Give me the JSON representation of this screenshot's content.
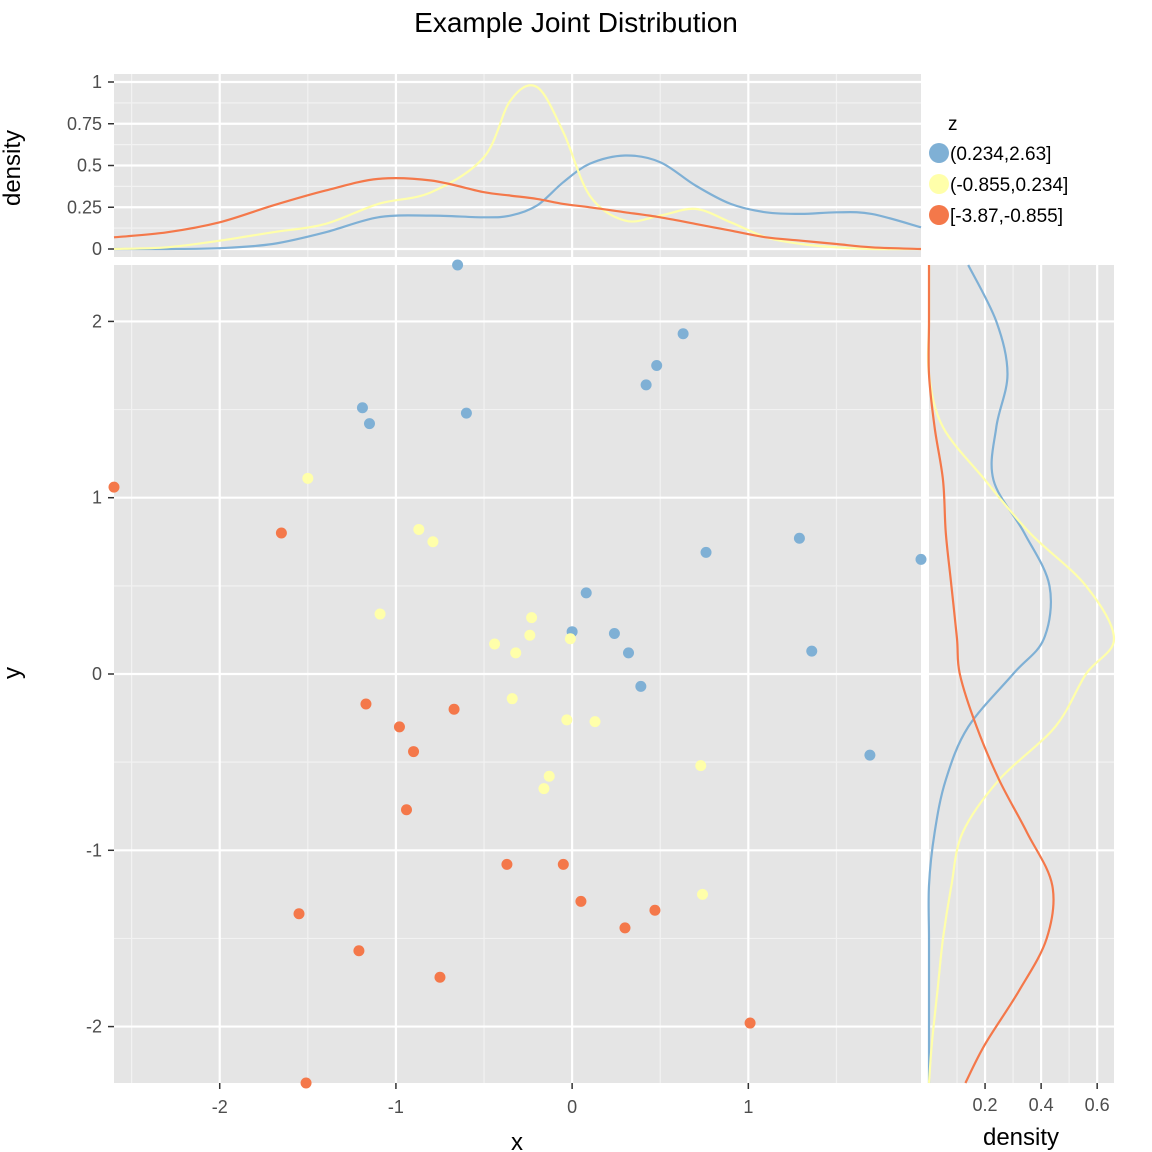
{
  "title": "Example Joint Distribution",
  "colors": {
    "panel_bg": "#e5e5e5",
    "grid_major": "#ffffff",
    "grid_minor": "#f2f2f2",
    "series": [
      "#7fb0d5",
      "#ffffaa",
      "#f4784a"
    ]
  },
  "chart_data": [
    {
      "type": "scatter",
      "role": "main",
      "xlabel": "x",
      "ylabel": "y",
      "xlim": [
        -2.6,
        1.98
      ],
      "ylim": [
        -2.32,
        2.32
      ],
      "xticks": [
        -2,
        -1,
        0,
        1
      ],
      "yticks": [
        -2,
        -1,
        0,
        1,
        2
      ],
      "xtick_labels": [
        "-2",
        "-1",
        "0",
        "1"
      ],
      "ytick_labels": [
        "-2",
        "-1",
        "0",
        "1",
        "2"
      ],
      "grid": true,
      "series": [
        {
          "name": "(0.234,2.63]",
          "points": [
            [
              -0.65,
              2.32
            ],
            [
              -0.6,
              1.48
            ],
            [
              -1.19,
              1.51
            ],
            [
              -1.15,
              1.42
            ],
            [
              0.63,
              1.93
            ],
            [
              0.48,
              1.75
            ],
            [
              0.42,
              1.64
            ],
            [
              0.76,
              0.69
            ],
            [
              1.29,
              0.77
            ],
            [
              1.98,
              0.65
            ],
            [
              0.08,
              0.46
            ],
            [
              0.0,
              0.24
            ],
            [
              0.24,
              0.23
            ],
            [
              0.32,
              0.12
            ],
            [
              1.36,
              0.13
            ],
            [
              0.39,
              -0.07
            ],
            [
              1.69,
              -0.46
            ]
          ]
        },
        {
          "name": "(-0.855,0.234]",
          "points": [
            [
              -1.5,
              1.11
            ],
            [
              -0.87,
              0.82
            ],
            [
              -0.79,
              0.75
            ],
            [
              -1.09,
              0.34
            ],
            [
              -0.23,
              0.32
            ],
            [
              -0.24,
              0.22
            ],
            [
              -0.44,
              0.17
            ],
            [
              -0.32,
              0.12
            ],
            [
              -0.01,
              0.2
            ],
            [
              -0.34,
              -0.14
            ],
            [
              -0.03,
              -0.26
            ],
            [
              0.13,
              -0.27
            ],
            [
              0.73,
              -0.52
            ],
            [
              -0.13,
              -0.58
            ],
            [
              -0.16,
              -0.65
            ],
            [
              0.74,
              -1.25
            ]
          ]
        },
        {
          "name": "[-3.87,-0.855]",
          "points": [
            [
              -2.6,
              1.06
            ],
            [
              -1.65,
              0.8
            ],
            [
              -1.17,
              -0.17
            ],
            [
              -0.98,
              -0.3
            ],
            [
              -0.67,
              -0.2
            ],
            [
              -0.9,
              -0.44
            ],
            [
              -0.94,
              -0.77
            ],
            [
              -0.37,
              -1.08
            ],
            [
              -0.05,
              -1.08
            ],
            [
              0.05,
              -1.29
            ],
            [
              0.47,
              -1.34
            ],
            [
              0.3,
              -1.44
            ],
            [
              -1.55,
              -1.36
            ],
            [
              -1.21,
              -1.57
            ],
            [
              -0.75,
              -1.72
            ],
            [
              1.01,
              -1.98
            ],
            [
              -1.51,
              -2.32
            ]
          ]
        }
      ]
    },
    {
      "type": "line",
      "role": "top-marginal-density",
      "ylabel": "density",
      "xlim": [
        -2.6,
        1.98
      ],
      "ylim": [
        0,
        1
      ],
      "yticks": [
        0,
        0.25,
        0.5,
        0.75,
        1
      ],
      "ytick_labels": [
        "0",
        "0.25",
        "0.5",
        "0.75",
        "1"
      ],
      "x": [
        -2.6,
        -2.3,
        -2.0,
        -1.7,
        -1.4,
        -1.1,
        -0.8,
        -0.5,
        -0.35,
        -0.2,
        -0.05,
        0.1,
        0.3,
        0.5,
        0.7,
        0.9,
        1.1,
        1.3,
        1.5,
        1.7,
        1.98
      ],
      "series": [
        {
          "name": "(0.234,2.63]",
          "values": [
            0.0,
            0.0,
            0.005,
            0.03,
            0.1,
            0.19,
            0.2,
            0.19,
            0.2,
            0.26,
            0.4,
            0.51,
            0.56,
            0.52,
            0.38,
            0.27,
            0.22,
            0.21,
            0.22,
            0.21,
            0.13
          ]
        },
        {
          "name": "(-0.855,0.234]",
          "values": [
            0.0,
            0.01,
            0.05,
            0.1,
            0.15,
            0.27,
            0.34,
            0.55,
            0.89,
            0.97,
            0.7,
            0.32,
            0.17,
            0.2,
            0.24,
            0.16,
            0.07,
            0.03,
            0.01,
            0.0,
            0.0
          ]
        },
        {
          "name": "[-3.87,-0.855]",
          "values": [
            0.07,
            0.1,
            0.16,
            0.26,
            0.35,
            0.42,
            0.41,
            0.34,
            0.32,
            0.3,
            0.27,
            0.25,
            0.22,
            0.19,
            0.15,
            0.11,
            0.07,
            0.05,
            0.03,
            0.01,
            0.0
          ]
        }
      ]
    },
    {
      "type": "line",
      "role": "right-marginal-density",
      "xlabel": "density",
      "xlim": [
        0,
        0.66
      ],
      "ylim": [
        -2.32,
        2.32
      ],
      "xticks": [
        0.2,
        0.4,
        0.6
      ],
      "xtick_labels": [
        "0.2",
        "0.4",
        "0.6"
      ],
      "y": [
        2.32,
        2.0,
        1.7,
        1.4,
        1.1,
        0.8,
        0.5,
        0.2,
        0.0,
        -0.3,
        -0.6,
        -0.9,
        -1.2,
        -1.5,
        -1.8,
        -2.1,
        -2.32
      ],
      "series": [
        {
          "name": "(0.234,2.63]",
          "values": [
            0.14,
            0.24,
            0.28,
            0.24,
            0.23,
            0.34,
            0.43,
            0.41,
            0.3,
            0.14,
            0.06,
            0.02,
            0.0,
            0.0,
            0.0,
            0.0,
            0.0
          ]
        },
        {
          "name": "(-0.855,0.234]",
          "values": [
            0.0,
            0.0,
            0.0,
            0.05,
            0.2,
            0.36,
            0.56,
            0.66,
            0.56,
            0.45,
            0.25,
            0.12,
            0.08,
            0.05,
            0.03,
            0.01,
            0.0
          ]
        },
        {
          "name": "[-3.87,-0.855]",
          "values": [
            0.0,
            0.0,
            0.0,
            0.02,
            0.05,
            0.06,
            0.08,
            0.1,
            0.11,
            0.17,
            0.25,
            0.35,
            0.44,
            0.42,
            0.32,
            0.2,
            0.13
          ]
        }
      ]
    }
  ],
  "legend": {
    "title": "z",
    "placement": "right",
    "entries": [
      "(0.234,2.63]",
      "(-0.855,0.234]",
      "[-3.87,-0.855]"
    ]
  }
}
